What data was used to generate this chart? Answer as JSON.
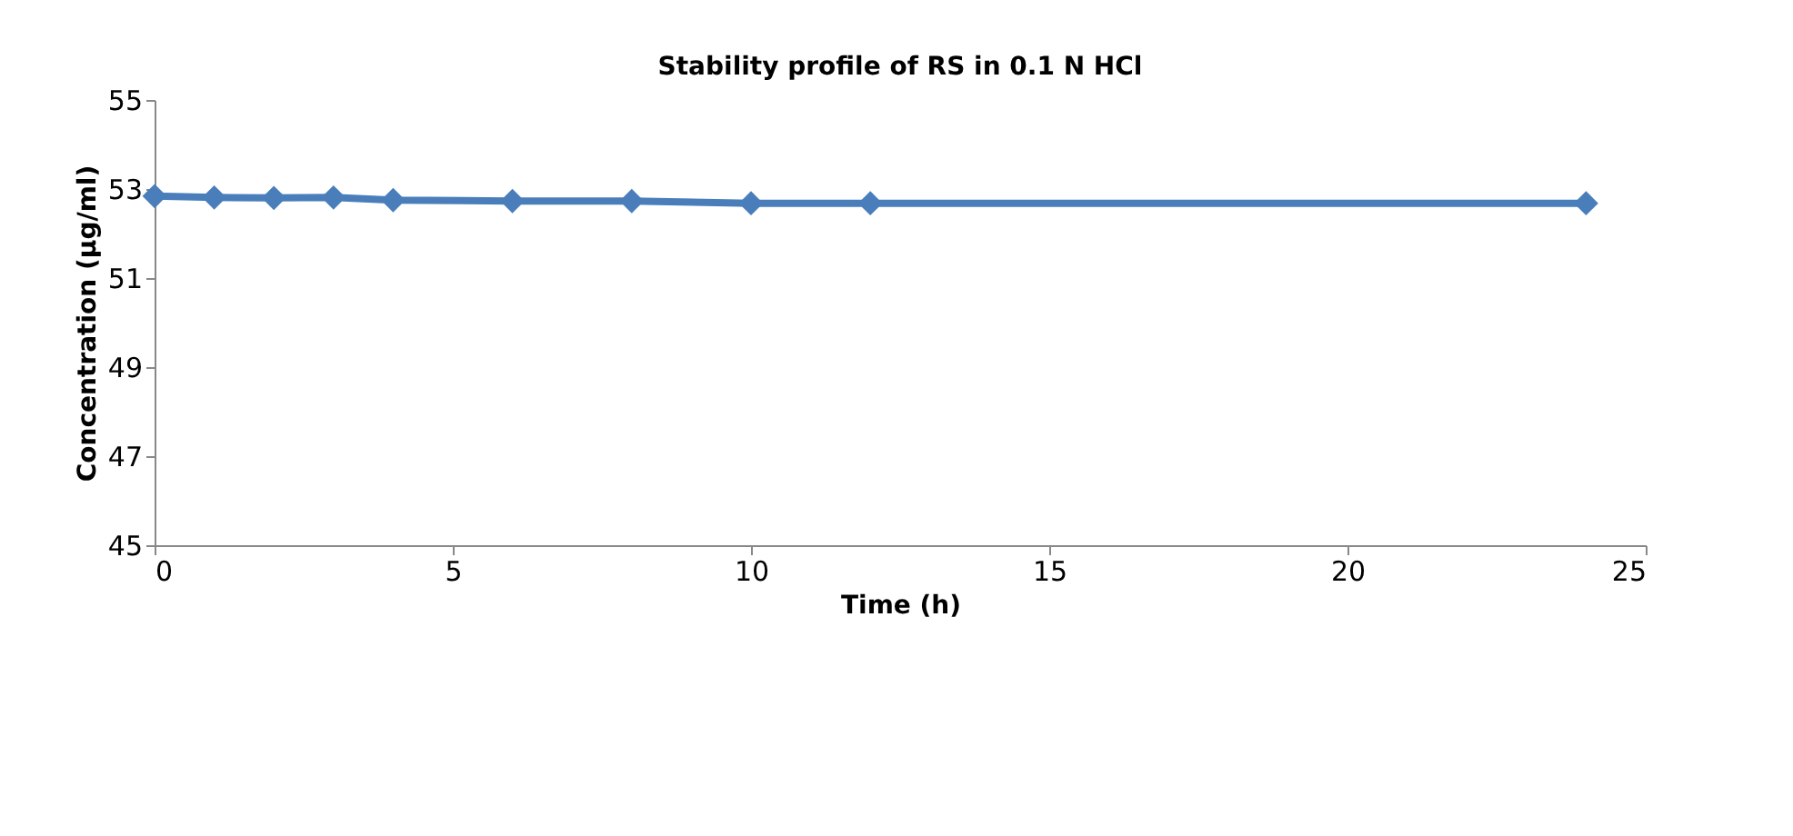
{
  "chart_data": {
    "type": "line",
    "title": "Stability profile of RS in 0.1 N HCl",
    "xlabel": "Time (h)",
    "ylabel": "Concentration (µg/ml)",
    "x": [
      0,
      1,
      2,
      3,
      4,
      6,
      8,
      10,
      12,
      24
    ],
    "series": [
      {
        "color": "#4a7ebb",
        "values": [
          52.84,
          52.81,
          52.8,
          52.81,
          52.75,
          52.73,
          52.73,
          52.68,
          52.68,
          52.68
        ]
      }
    ],
    "xlim": [
      0,
      25
    ],
    "xticks": [
      0,
      5,
      10,
      15,
      20,
      25
    ],
    "ylim": [
      45,
      55
    ],
    "yticks": [
      45,
      47,
      49,
      51,
      53,
      55
    ],
    "grid": false,
    "marker": "diamond",
    "line_style": "solid"
  }
}
